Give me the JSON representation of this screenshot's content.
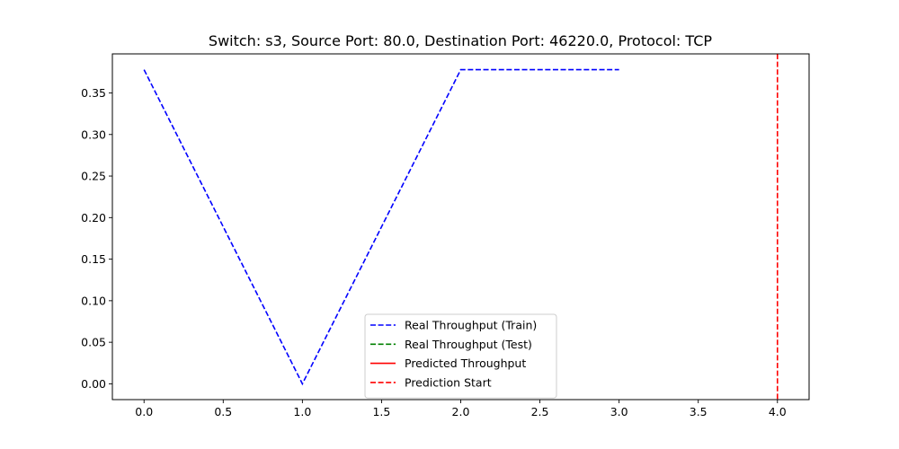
{
  "chart_data": {
    "type": "line",
    "title": "Switch: s3, Source Port: 80.0, Destination Port: 46220.0, Protocol: TCP",
    "xlabel": "",
    "ylabel": "",
    "xlim": [
      -0.2,
      4.2
    ],
    "ylim": [
      -0.019,
      0.397
    ],
    "xticks": [
      0.0,
      0.5,
      1.0,
      1.5,
      2.0,
      2.5,
      3.0,
      3.5,
      4.0
    ],
    "xtick_labels": [
      "0.0",
      "0.5",
      "1.0",
      "1.5",
      "2.0",
      "2.5",
      "3.0",
      "3.5",
      "4.0"
    ],
    "yticks": [
      0.0,
      0.05,
      0.1,
      0.15,
      0.2,
      0.25,
      0.3,
      0.35
    ],
    "ytick_labels": [
      "0.00",
      "0.05",
      "0.10",
      "0.15",
      "0.20",
      "0.25",
      "0.30",
      "0.35"
    ],
    "grid": false,
    "legend_position": "lower-center",
    "series": [
      {
        "name": "Real Throughput (Train)",
        "color": "#0000ff",
        "style": "dashed",
        "x": [
          0,
          1,
          2,
          3
        ],
        "y": [
          0.378,
          0.0,
          0.378,
          0.378
        ]
      },
      {
        "name": "Real Throughput (Test)",
        "color": "#008000",
        "style": "dashed",
        "x": [],
        "y": []
      },
      {
        "name": "Predicted Throughput",
        "color": "#ff0000",
        "style": "solid",
        "x": [],
        "y": []
      }
    ],
    "vlines": [
      {
        "name": "Prediction Start",
        "x": 4.0,
        "color": "#ff0000",
        "style": "dashed"
      }
    ]
  }
}
